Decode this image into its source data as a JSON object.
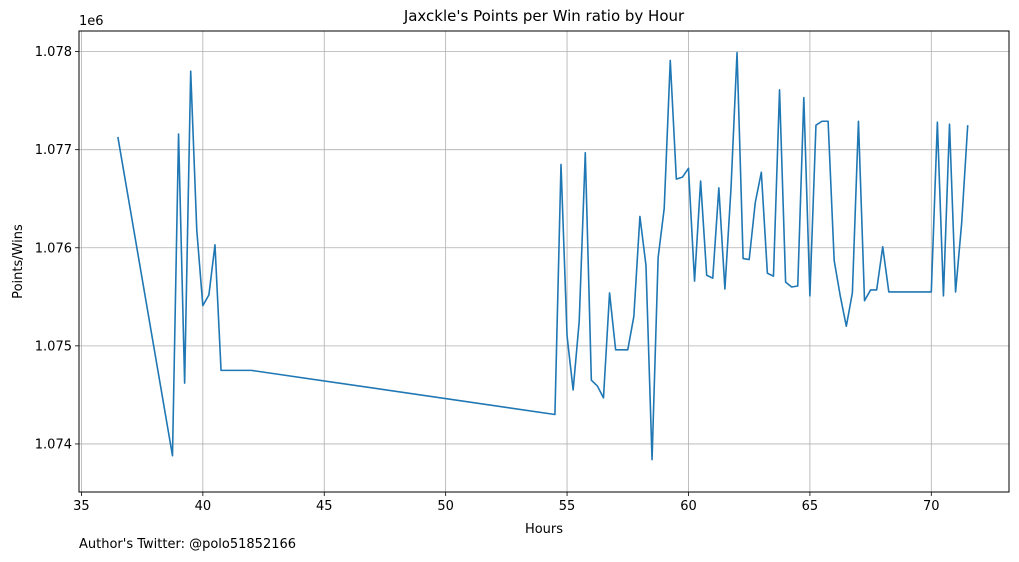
{
  "chart_data": {
    "type": "line",
    "title": "Jaxckle's Points per Win ratio by Hour",
    "xlabel": "Hours",
    "ylabel": "Points/Wins",
    "y_offset_text": "1e6",
    "xlim": [
      34.9,
      73.2
    ],
    "ylim": [
      1.07351,
      1.07821
    ],
    "x_ticks": [
      35,
      40,
      45,
      50,
      55,
      60,
      65,
      70
    ],
    "x_tick_labels": [
      "35",
      "40",
      "45",
      "50",
      "55",
      "60",
      "65",
      "70"
    ],
    "y_ticks": [
      1.074,
      1.075,
      1.076,
      1.077,
      1.078
    ],
    "y_tick_labels": [
      "1.074",
      "1.075",
      "1.076",
      "1.077",
      "1.078"
    ],
    "grid": true,
    "color": "#1f77b4",
    "series": [
      {
        "x": [
          36.5,
          38.75,
          39.0,
          39.25,
          39.5,
          39.75,
          40.0,
          40.25,
          40.5,
          40.75,
          42.0,
          54.5,
          54.75,
          55.0,
          55.25,
          55.5,
          55.75,
          56.0,
          56.25,
          56.5,
          56.75,
          57.0,
          57.25,
          57.5,
          57.75,
          58.0,
          58.25,
          58.5,
          58.75,
          59.0,
          59.25,
          59.5,
          59.75,
          60.0,
          60.25,
          60.5,
          60.75,
          61.0,
          61.25,
          61.5,
          61.75,
          62.0,
          62.25,
          62.5,
          62.75,
          63.0,
          63.25,
          63.5,
          63.75,
          64.0,
          64.25,
          64.5,
          64.75,
          65.0,
          65.25,
          65.5,
          65.75,
          66.0,
          66.25,
          66.5,
          66.75,
          67.0,
          67.25,
          67.5,
          67.75,
          68.0,
          68.25,
          70.0,
          70.25,
          70.5,
          70.75,
          71.0,
          71.25,
          71.5
        ],
        "y": [
          1.07713,
          1.07388,
          1.07716,
          1.07462,
          1.0778,
          1.07618,
          1.07541,
          1.07552,
          1.07603,
          1.07475,
          1.07475,
          1.0743,
          1.07685,
          1.0751,
          1.07455,
          1.07525,
          1.07697,
          1.07465,
          1.07459,
          1.07447,
          1.07554,
          1.07496,
          1.07496,
          1.07496,
          1.0753,
          1.07632,
          1.07582,
          1.07384,
          1.0759,
          1.0764,
          1.07791,
          1.0767,
          1.07672,
          1.07681,
          1.07566,
          1.07668,
          1.07572,
          1.07569,
          1.07661,
          1.07558,
          1.0766,
          1.07799,
          1.07589,
          1.07588,
          1.07646,
          1.07677,
          1.07574,
          1.07571,
          1.07761,
          1.07565,
          1.0756,
          1.07561,
          1.07753,
          1.07551,
          1.07725,
          1.07729,
          1.07729,
          1.07587,
          1.07551,
          1.0752,
          1.07554,
          1.07729,
          1.07546,
          1.07557,
          1.07557,
          1.07601,
          1.07555,
          1.07555,
          1.07728,
          1.07551,
          1.07726,
          1.07555,
          1.07625,
          1.07725
        ]
      }
    ]
  },
  "footer": {
    "note": "Author's Twitter: @polo51852166"
  }
}
